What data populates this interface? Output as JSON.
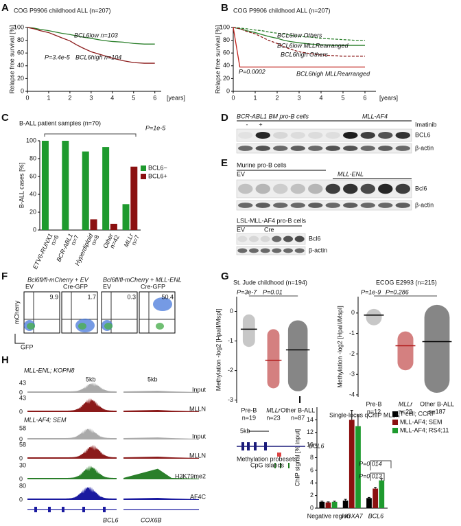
{
  "panel_labels": [
    "A",
    "B",
    "C",
    "D",
    "E",
    "F",
    "G",
    "H",
    "I"
  ],
  "chart_data": [
    {
      "type": "line",
      "title": "COG P9906 childhood ALL (n=207)",
      "y_label": "Relapse free survival [%]",
      "x_label": "[years]",
      "x": [
        0,
        0.3,
        0.6,
        1,
        1.3,
        1.6,
        2,
        2.3,
        2.6,
        3,
        3.5,
        4,
        4.5,
        5,
        5.5,
        6
      ],
      "xlim": [
        0,
        6.3
      ],
      "xticks": [
        0,
        1,
        2,
        3,
        4,
        5,
        6
      ],
      "ylim": [
        0,
        100
      ],
      "yticks": [
        0,
        20,
        40,
        60,
        80,
        100
      ],
      "annotations": [
        "P=3.4e-5"
      ],
      "series": [
        {
          "name": "BCL6low n=103",
          "color": "#2a7f2a",
          "values": [
            100,
            99,
            97,
            95,
            93,
            91,
            89,
            87,
            85,
            83,
            80,
            78,
            77,
            75,
            74,
            74
          ]
        },
        {
          "name": "BCL6high n=104",
          "color": "#8b1a1a",
          "values": [
            100,
            98,
            95,
            92,
            88,
            84,
            79,
            73,
            68,
            62,
            57,
            52,
            48,
            45,
            44,
            44
          ]
        }
      ]
    },
    {
      "type": "line",
      "title": "COG P9906 childhood ALL (n=207)",
      "y_label": "Relapse free survival [%]",
      "x_label": "[years]",
      "x": [
        0,
        0.3,
        0.6,
        1,
        1.3,
        1.6,
        2,
        2.3,
        2.6,
        3,
        3.5,
        4,
        4.5,
        5,
        5.5,
        6
      ],
      "xlim": [
        0,
        6.5
      ],
      "xticks": [
        0,
        1,
        2,
        3,
        4,
        5,
        6
      ],
      "ylim": [
        0,
        100
      ],
      "yticks": [
        0,
        20,
        40,
        60,
        80,
        100
      ],
      "annotations": [
        "P=0.0002"
      ],
      "series": [
        {
          "name": "BCL6low Others",
          "color": "#2a7f2a",
          "dashed": true,
          "values": [
            100,
            99,
            98,
            96,
            95,
            93,
            91,
            90,
            88,
            86,
            85,
            83,
            82,
            81,
            80,
            80
          ]
        },
        {
          "name": "BCL6low MLLRearranged",
          "color": "#2a7f2a",
          "values": [
            100,
            98,
            95,
            92,
            89,
            86,
            83,
            80,
            78,
            76,
            74,
            73,
            72,
            72,
            72,
            72
          ]
        },
        {
          "name": "BCL6high Others",
          "color": "#8b1a1a",
          "dashed": true,
          "values": [
            100,
            98,
            94,
            90,
            85,
            80,
            75,
            70,
            66,
            62,
            59,
            57,
            56,
            55,
            55,
            55
          ]
        },
        {
          "name": "BCL6high MLLRearranged",
          "color": "#c0201a",
          "values": [
            100,
            38,
            38,
            38,
            38,
            38,
            38,
            38,
            38,
            38,
            38,
            38,
            38,
            38,
            38,
            38
          ]
        }
      ]
    },
    {
      "type": "bar",
      "title": "B-ALL patient samples (n=70)",
      "y_label": "B-ALL cases [%]",
      "annotations": [
        "P=1e-5"
      ],
      "categories": [
        "ETV6-RUNX1",
        "BCR-ABL1",
        "Hyperdiploid",
        "Other",
        "MLLr"
      ],
      "n_labels": [
        "n=6",
        "n=7",
        "n=8",
        "n=42",
        "n=7"
      ],
      "ylim": [
        0,
        100
      ],
      "yticks": [
        0,
        20,
        40,
        60,
        80,
        100
      ],
      "series": [
        {
          "name": "BCL6−",
          "color": "#1e9a2e",
          "values": [
            100,
            100,
            88,
            93,
            29
          ]
        },
        {
          "name": "BCL6+",
          "color": "#8b1010",
          "values": [
            0,
            0,
            12,
            7,
            71
          ]
        }
      ]
    },
    {
      "type": "dot",
      "title": "St. Jude childhood (n=194)",
      "y_label": "Methylation -log2 [HpaII/MspI]",
      "annotations": [
        "P=3e-7",
        "P=0.01"
      ],
      "categories": [
        "Pre-B",
        "MLLr",
        "Other B-ALL"
      ],
      "n_labels": [
        "n=19",
        "n=23",
        "n=87"
      ],
      "colors": [
        "#999999",
        "#b01818",
        "#222222"
      ],
      "ylim": [
        -3.1,
        0.5
      ],
      "yticks": [
        0,
        -1,
        -2,
        -3
      ],
      "medians": [
        -0.6,
        -1.65,
        -1.3
      ],
      "ranges": [
        [
          -1.2,
          -0.1
        ],
        [
          -2.6,
          -0.6
        ],
        [
          -2.7,
          -0.3
        ]
      ]
    },
    {
      "type": "dot",
      "title": "ECOG E2993 (n=215)",
      "y_label": "Methylation -log2 [HpaII/MspI]",
      "annotations": [
        "P=1e-9",
        "P=0.286"
      ],
      "categories": [
        "Pre-B",
        "MLLr",
        "Other B-ALL"
      ],
      "n_labels": [
        "n=12",
        "n=28",
        "n=187"
      ],
      "colors": [
        "#999999",
        "#b01818",
        "#222222"
      ],
      "ylim": [
        -4.1,
        0.8
      ],
      "yticks": [
        0,
        -1,
        -2,
        -3,
        -4
      ],
      "medians": [
        -0.1,
        -1.6,
        -1.4
      ],
      "ranges": [
        [
          -0.6,
          0.2
        ],
        [
          -2.8,
          -0.9
        ],
        [
          -3.9,
          0.4
        ]
      ]
    },
    {
      "type": "bar",
      "title": "Single-locus qChIP MLLN",
      "y_label": "ChIP signal [% input]",
      "annotations": [
        "P=0.013",
        "P=0.014"
      ],
      "categories": [
        "Negative region",
        "HOXA7",
        "BCL6"
      ],
      "ylim": [
        0,
        16
      ],
      "yticks": [
        0,
        2,
        4,
        6,
        8,
        10,
        12,
        14
      ],
      "series": [
        {
          "name": "T-cell; CCRF",
          "color": "#000000",
          "values": [
            1.0,
            1.2,
            1.6
          ],
          "errors": [
            0.1,
            0.2,
            0.1
          ]
        },
        {
          "name": "MLL-AF4; SEM",
          "color": "#8b1010",
          "values": [
            0.9,
            14,
            3.1
          ],
          "errors": [
            0.1,
            1.5,
            0.2
          ]
        },
        {
          "name": "MLL-AF4; RS4;11",
          "color": "#1e9a2e",
          "values": [
            1.0,
            13,
            4.4
          ],
          "errors": [
            0.1,
            1.8,
            0.3
          ]
        }
      ]
    }
  ],
  "D": {
    "header_left": "BCR-ABL1 BM pro-B cells",
    "header_right": "MLL-AF4",
    "lane_signs": [
      "-",
      "+"
    ],
    "treatment": "Imatinib",
    "rows": [
      "BCL6",
      "β-actin"
    ]
  },
  "E": {
    "header1": "Murine pro-B cells",
    "group1": [
      "EV",
      "MLL-ENL"
    ],
    "rows1": [
      "Bcl6",
      "β-actin"
    ],
    "header2": "LSL-MLL-AF4 pro-B cells",
    "group2": [
      "EV",
      "Cre"
    ],
    "rows2": [
      "Bcl6",
      "β-actin"
    ]
  },
  "F": {
    "group_titles": [
      "Bcl6fl/fl-mCherry + EV",
      "Bcl6fl/fl-mCherry + MLL-ENL"
    ],
    "plots": [
      {
        "label": "EV",
        "percent": 9.9
      },
      {
        "label": "Cre-GFP",
        "percent": 1.7
      },
      {
        "label": "EV",
        "percent": 0.3
      },
      {
        "label": "Cre-GFP",
        "percent": 50.4
      }
    ],
    "y_label": "mCherry",
    "x_label": "GFP"
  },
  "G_map": {
    "scale": "5kb",
    "gene": "BCL6",
    "legend": [
      "Methylation probesets",
      "CpG islands"
    ]
  },
  "H": {
    "sample1": "MLL-ENL; KOPN8",
    "scale": [
      "5kb",
      "5kb"
    ],
    "tracks1": [
      {
        "min": 0,
        "max": 43,
        "label": "Input"
      },
      {
        "min": 0,
        "max": 43,
        "label": "MLLN"
      }
    ],
    "sample2": "MLL-AF4; SEM",
    "tracks2": [
      {
        "min": 0,
        "max": 58,
        "label": "Input"
      },
      {
        "min": 0,
        "max": 58,
        "label": "MLLN"
      },
      {
        "min": 0,
        "max": 30,
        "label": "H3K79me2"
      },
      {
        "min": 0,
        "max": 80,
        "label": "AF4C"
      }
    ],
    "genes": [
      "BCL6",
      "COX6B"
    ]
  }
}
